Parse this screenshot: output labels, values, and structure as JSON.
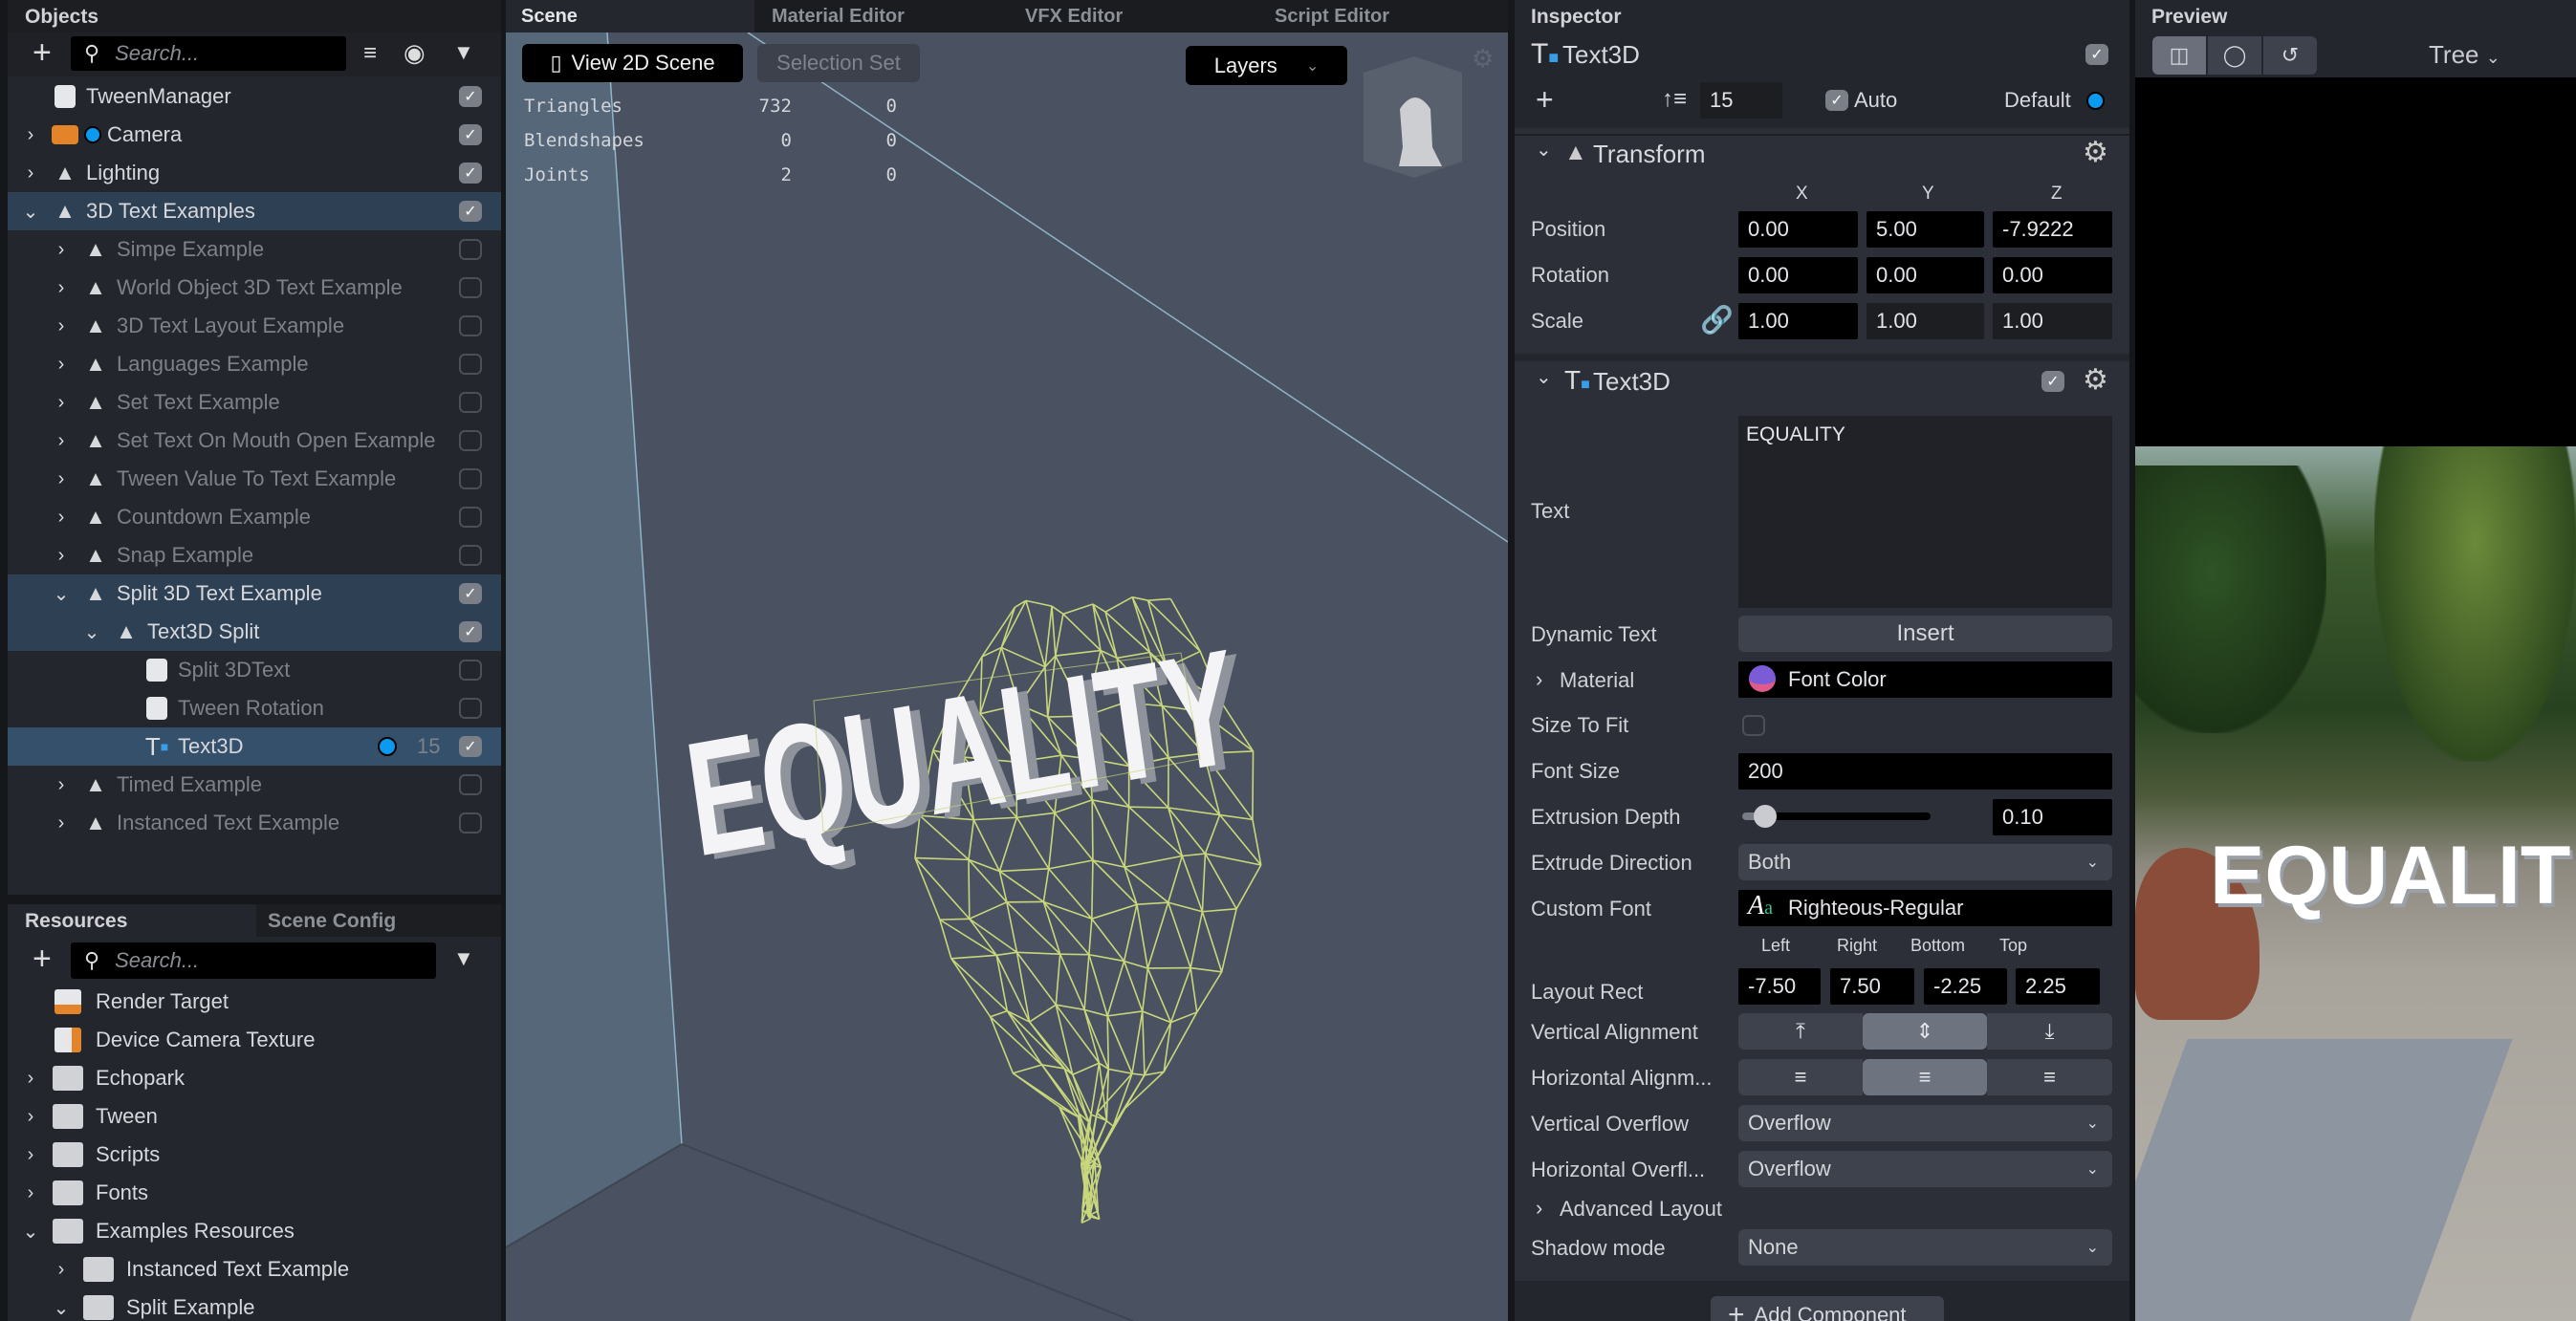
{
  "objects": {
    "title": "Objects",
    "search_placeholder": "Search...",
    "items": [
      {
        "name": "TweenManager",
        "depth": 0,
        "expand": "",
        "icon": "script-icon",
        "enabled": true,
        "checked": true,
        "state": ""
      },
      {
        "name": "Camera",
        "depth": 0,
        "expand": ">",
        "icon": "camera-icon",
        "enabled": true,
        "checked": true,
        "state": "",
        "dot": true
      },
      {
        "name": "Lighting",
        "depth": 0,
        "expand": ">",
        "icon": "scene-object-icon",
        "enabled": true,
        "checked": true,
        "state": ""
      },
      {
        "name": "3D Text Examples",
        "depth": 0,
        "expand": "v",
        "icon": "scene-object-icon",
        "enabled": true,
        "checked": true,
        "state": "sel"
      },
      {
        "name": "Simpe Example",
        "depth": 1,
        "expand": ">",
        "icon": "scene-object-icon",
        "enabled": false,
        "checked": false,
        "state": ""
      },
      {
        "name": "World Object 3D Text Example",
        "depth": 1,
        "expand": ">",
        "icon": "scene-object-icon",
        "enabled": false,
        "checked": false,
        "state": ""
      },
      {
        "name": "3D Text Layout Example",
        "depth": 1,
        "expand": ">",
        "icon": "scene-object-icon",
        "enabled": false,
        "checked": false,
        "state": ""
      },
      {
        "name": "Languages Example",
        "depth": 1,
        "expand": ">",
        "icon": "scene-object-icon",
        "enabled": false,
        "checked": false,
        "state": ""
      },
      {
        "name": "Set Text Example",
        "depth": 1,
        "expand": ">",
        "icon": "scene-object-icon",
        "enabled": false,
        "checked": false,
        "state": ""
      },
      {
        "name": "Set Text On Mouth Open Example",
        "depth": 1,
        "expand": ">",
        "icon": "scene-object-icon",
        "enabled": false,
        "checked": false,
        "state": ""
      },
      {
        "name": "Tween Value To Text Example",
        "depth": 1,
        "expand": ">",
        "icon": "scene-object-icon",
        "enabled": false,
        "checked": false,
        "state": ""
      },
      {
        "name": "Countdown Example",
        "depth": 1,
        "expand": ">",
        "icon": "scene-object-icon",
        "enabled": false,
        "checked": false,
        "state": ""
      },
      {
        "name": "Snap Example",
        "depth": 1,
        "expand": ">",
        "icon": "scene-object-icon",
        "enabled": false,
        "checked": false,
        "state": ""
      },
      {
        "name": "Split 3D Text Example",
        "depth": 1,
        "expand": "v",
        "icon": "scene-object-icon",
        "enabled": true,
        "checked": true,
        "state": "sel"
      },
      {
        "name": "Text3D Split",
        "depth": 2,
        "expand": "v",
        "icon": "scene-object-icon",
        "enabled": true,
        "checked": true,
        "state": "sel"
      },
      {
        "name": "Split 3DText",
        "depth": 3,
        "expand": "",
        "icon": "script-icon",
        "enabled": false,
        "checked": false,
        "state": ""
      },
      {
        "name": "Tween Rotation",
        "depth": 3,
        "expand": "",
        "icon": "script-icon",
        "enabled": false,
        "checked": false,
        "state": ""
      },
      {
        "name": "Text3D",
        "depth": 3,
        "expand": "",
        "icon": "text3d-icon",
        "enabled": true,
        "checked": true,
        "state": "cur",
        "layer": "15",
        "dot": true
      },
      {
        "name": "Timed Example",
        "depth": 1,
        "expand": ">",
        "icon": "scene-object-icon",
        "enabled": false,
        "checked": false,
        "state": ""
      },
      {
        "name": "Instanced Text Example",
        "depth": 1,
        "expand": ">",
        "icon": "scene-object-icon",
        "enabled": false,
        "checked": false,
        "state": ""
      }
    ]
  },
  "resources": {
    "tabs": [
      "Resources",
      "Scene Config"
    ],
    "search_placeholder": "Search...",
    "items": [
      {
        "name": "Render Target",
        "depth": 0,
        "expand": "",
        "icon": "render-target-icon"
      },
      {
        "name": "Device Camera Texture",
        "depth": 0,
        "expand": "",
        "icon": "device-camera-texture-icon"
      },
      {
        "name": "Echopark",
        "depth": 0,
        "expand": ">",
        "icon": "folder-icon"
      },
      {
        "name": "Tween",
        "depth": 0,
        "expand": ">",
        "icon": "folder-icon"
      },
      {
        "name": "Scripts",
        "depth": 0,
        "expand": ">",
        "icon": "folder-icon"
      },
      {
        "name": "Fonts",
        "depth": 0,
        "expand": ">",
        "icon": "folder-icon"
      },
      {
        "name": "Examples Resources",
        "depth": 0,
        "expand": "v",
        "icon": "folder-icon"
      },
      {
        "name": "Instanced Text Example",
        "depth": 1,
        "expand": ">",
        "icon": "folder-icon"
      },
      {
        "name": "Split Example",
        "depth": 1,
        "expand": "v",
        "icon": "folder-icon"
      }
    ]
  },
  "scene": {
    "tabs": [
      "Scene",
      "Material Editor",
      "VFX Editor",
      "Script Editor"
    ],
    "view2d_label": "View 2D Scene",
    "selection_set_label": "Selection Set",
    "layers_label": "Layers",
    "stats": [
      {
        "label": "Triangles",
        "a": "732",
        "b": "0"
      },
      {
        "label": "Blendshapes",
        "a": "0",
        "b": "0"
      },
      {
        "label": "Joints",
        "a": "2",
        "b": "0"
      }
    ],
    "text3d": "EQUALITY",
    "wireframe_color": "#c9d77c"
  },
  "inspector": {
    "title": "Inspector",
    "object_name": "Text3D",
    "layer_value": "15",
    "auto_label": "Auto",
    "default_label": "Default",
    "transform": {
      "title": "Transform",
      "axes": [
        "X",
        "Y",
        "Z"
      ],
      "position_label": "Position",
      "rotation_label": "Rotation",
      "scale_label": "Scale",
      "position": [
        "0.00",
        "5.00",
        "-7.9222"
      ],
      "rotation": [
        "0.00",
        "0.00",
        "0.00"
      ],
      "scale": [
        "1.00",
        "1.00",
        "1.00"
      ]
    },
    "text3d": {
      "title": "Text3D",
      "text_label": "Text",
      "text_value": "EQUALITY",
      "dynamic_text_label": "Dynamic Text",
      "insert_label": "Insert",
      "material_label": "Material",
      "material_value": "Font Color",
      "size_to_fit_label": "Size To Fit",
      "font_size_label": "Font Size",
      "font_size_value": "200",
      "extrusion_depth_label": "Extrusion Depth",
      "extrusion_depth_value": "0.10",
      "extrusion_slider_fraction": 0.12,
      "extrude_direction_label": "Extrude Direction",
      "extrude_direction_value": "Both",
      "custom_font_label": "Custom Font",
      "custom_font_value": "Righteous-Regular",
      "layout_rect_label": "Layout Rect",
      "rect_headers": [
        "Left",
        "Right",
        "Bottom",
        "Top"
      ],
      "rect_values": [
        "-7.50",
        "7.50",
        "-2.25",
        "2.25"
      ],
      "vertical_alignment_label": "Vertical Alignment",
      "horizontal_alignment_label": "Horizontal Alignm...",
      "vertical_overflow_label": "Vertical Overflow",
      "vertical_overflow_value": "Overflow",
      "horizontal_overflow_label": "Horizontal Overfl...",
      "horizontal_overflow_value": "Overflow",
      "advanced_layout_label": "Advanced Layout",
      "shadow_mode_label": "Shadow mode",
      "shadow_mode_value": "None"
    },
    "add_component_label": "Add Component"
  },
  "preview": {
    "title": "Preview",
    "device_label": "Tree",
    "overlay_text": "EQUALIT"
  },
  "colors": {
    "accent": "#0a9bf0",
    "selected_row": "#35506a",
    "camera_orange": "#e3842a"
  }
}
